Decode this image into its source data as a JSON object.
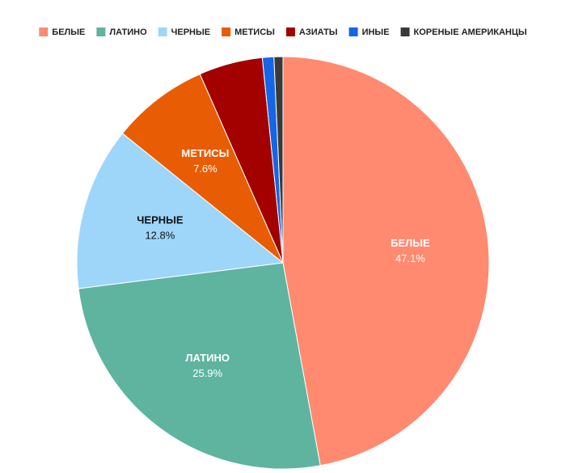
{
  "chart_data": {
    "type": "pie",
    "categories": [
      "БЕЛЫЕ",
      "ЛАТИНО",
      "ЧЕРНЫЕ",
      "МЕТИСЫ",
      "АЗИАТЫ",
      "ИНЫЕ",
      "КОРЕНЫЕ АМЕРИКАНЦЫ"
    ],
    "values": [
      47.1,
      25.9,
      12.8,
      7.6,
      5.0,
      0.9,
      0.7
    ],
    "value_labels": [
      "47.1%",
      "25.9%",
      "12.8%",
      "7.6%",
      null,
      null,
      null
    ],
    "colors": [
      "#ff8a70",
      "#5fb4a0",
      "#9ed6fa",
      "#e85d04",
      "#a30000",
      "#1565e6",
      "#3a3a3a"
    ],
    "legend": "top"
  }
}
